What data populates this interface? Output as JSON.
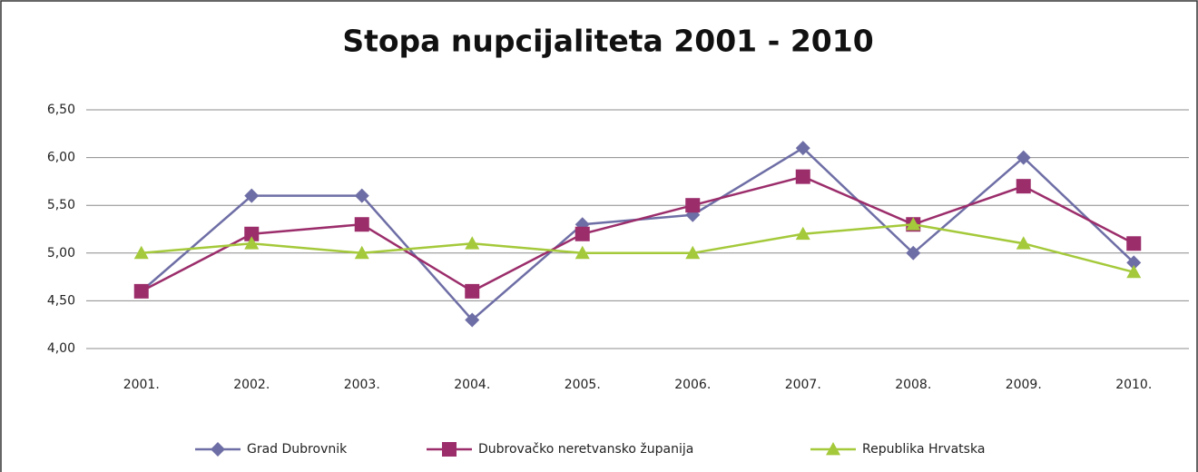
{
  "chart_data": {
    "type": "line",
    "title": "Stopa nupcijaliteta 2001 - 2010",
    "categories": [
      "2001.",
      "2002.",
      "2003.",
      "2004.",
      "2005.",
      "2006.",
      "2007.",
      "2008.",
      "2009.",
      "2010."
    ],
    "series": [
      {
        "name": "Grad Dubrovnik",
        "color": "#6e6ea6",
        "marker": "diamond",
        "values": [
          4.6,
          5.6,
          5.6,
          4.3,
          5.3,
          5.4,
          6.1,
          5.0,
          6.0,
          4.9
        ]
      },
      {
        "name": "Dubrovačko neretvansko županija",
        "color": "#9b2d6b",
        "marker": "square",
        "values": [
          4.6,
          5.2,
          5.3,
          4.6,
          5.2,
          5.5,
          5.8,
          5.3,
          5.7,
          5.1
        ]
      },
      {
        "name": "Republika Hrvatska",
        "color": "#a4c93a",
        "marker": "triangle",
        "values": [
          5.0,
          5.1,
          5.0,
          5.1,
          5.0,
          5.0,
          5.2,
          5.3,
          5.1,
          4.8
        ]
      }
    ],
    "ylim": [
      4.0,
      6.5
    ],
    "yticks": [
      {
        "value": 4.0,
        "label": "4,00"
      },
      {
        "value": 4.5,
        "label": "4,50"
      },
      {
        "value": 5.0,
        "label": "5,00"
      },
      {
        "value": 5.5,
        "label": "5,50"
      },
      {
        "value": 6.0,
        "label": "6,00"
      },
      {
        "value": 6.5,
        "label": "6,50"
      }
    ],
    "grid": true,
    "legend": "bottom"
  }
}
